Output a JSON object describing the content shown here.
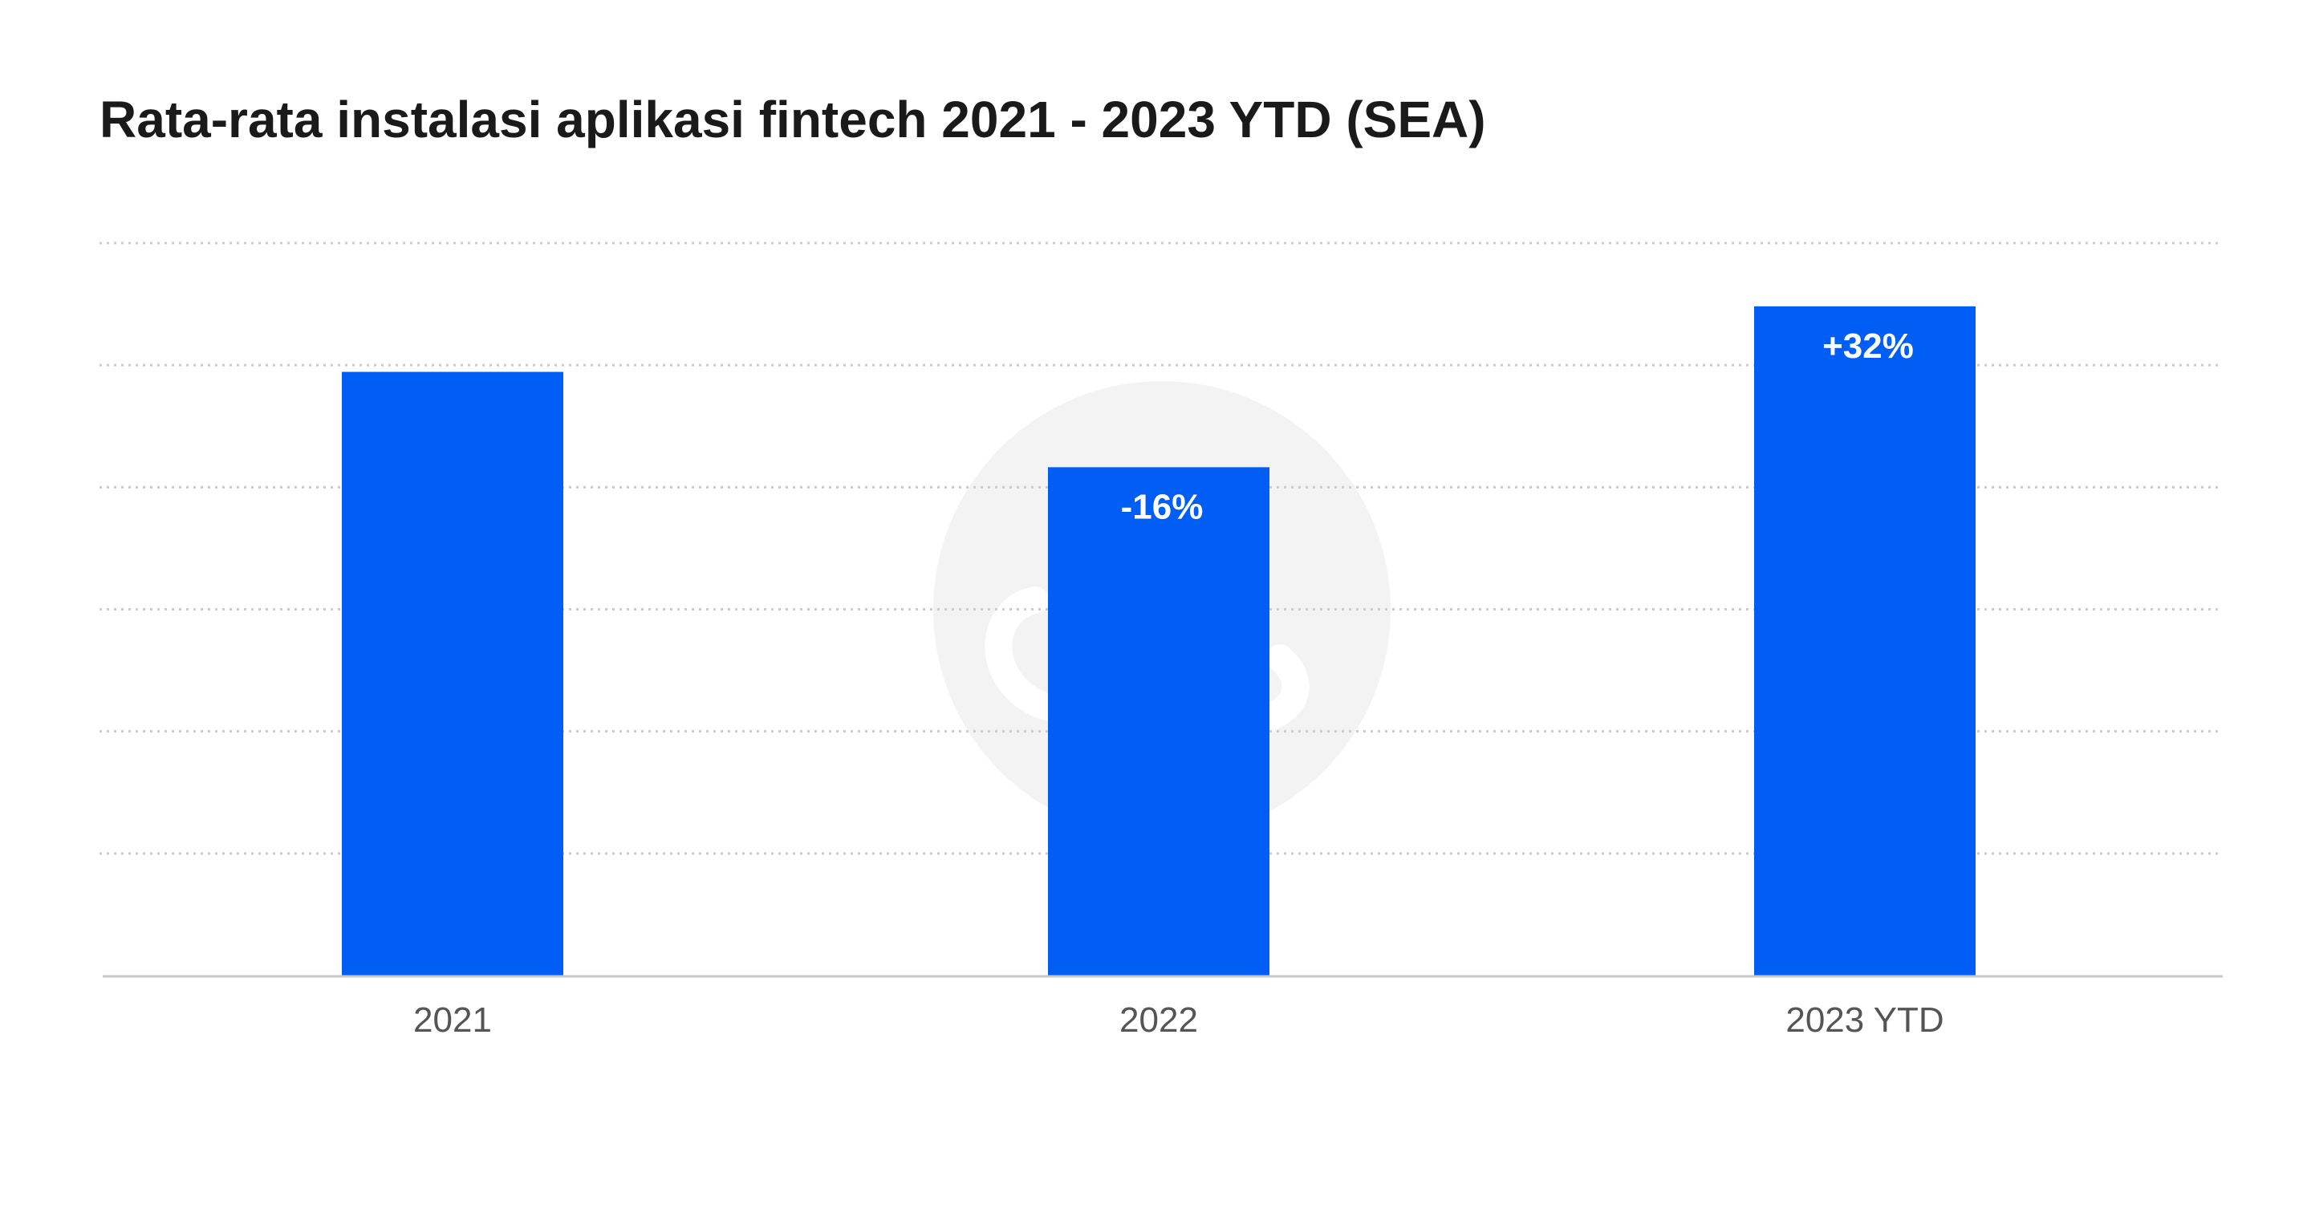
{
  "chart_data": {
    "type": "bar",
    "title": "Rata-rata instalasi aplikasi fintech 2021 - 2023 YTD (SEA)",
    "categories": [
      "2021",
      "2022",
      "2023 YTD"
    ],
    "values": [
      4945,
      4164,
      5482
    ],
    "data_labels": [
      "",
      "-16%",
      "+32%"
    ],
    "ylim": [
      0,
      6000
    ],
    "grid": true,
    "grid_style": "dotted",
    "y_tick_labels_shown": false,
    "legend": "none",
    "colors": {
      "bar": "#005ef5",
      "data_label": "#ffffff",
      "grid": "#cccccc",
      "axis": "#c8c8c8",
      "title": "#1a1a1a",
      "tick_label": "#555555",
      "watermark": "#f3f3f3"
    }
  }
}
